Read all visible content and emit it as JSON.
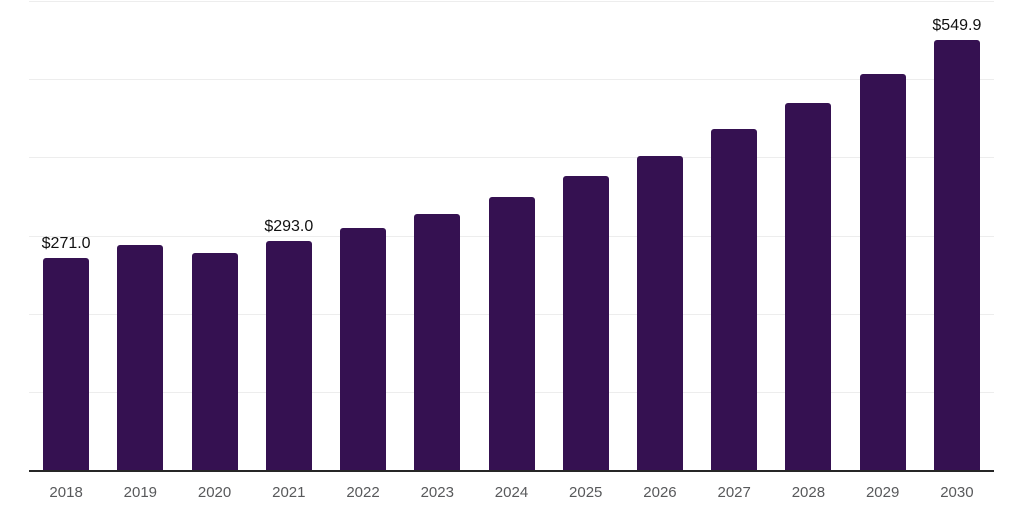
{
  "chart_data": {
    "type": "bar",
    "title": "",
    "xlabel": "",
    "ylabel": "",
    "categories": [
      "2018",
      "2019",
      "2020",
      "2021",
      "2022",
      "2023",
      "2024",
      "2025",
      "2026",
      "2027",
      "2028",
      "2029",
      "2030"
    ],
    "values": [
      271.0,
      288,
      278,
      293.0,
      310,
      328,
      349,
      376,
      402,
      436,
      470,
      507,
      549.9
    ],
    "data_labels": [
      "$271.0",
      "",
      "",
      "$293.0",
      "",
      "",
      "",
      "",
      "",
      "",
      "",
      "",
      "$549.9"
    ],
    "value_prefix": "$",
    "ylim": [
      0,
      600
    ],
    "gridline_step": 100,
    "grid": true,
    "legend": "none",
    "y_axis_labels_visible": false,
    "colors": {
      "bar": "#351151",
      "gridline": "#ededed",
      "axis_line": "#262626",
      "tick_label": "#58595b",
      "data_label": "#111111",
      "background": "#ffffff"
    }
  }
}
